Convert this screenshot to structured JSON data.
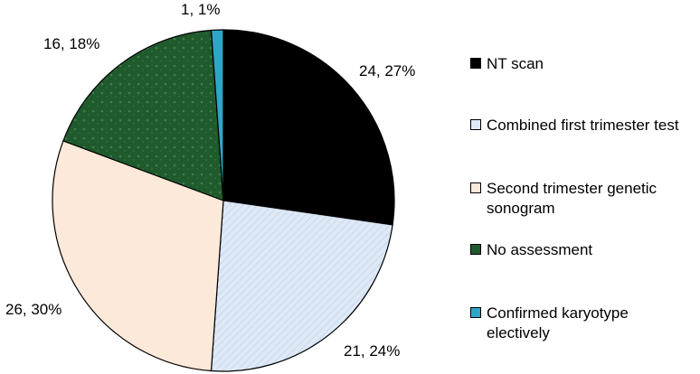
{
  "chart_data": {
    "type": "pie",
    "title": "",
    "slices": [
      {
        "label": "NT scan",
        "value": 24,
        "percent": 27,
        "data_label": "24, 27%",
        "color": "#000000"
      },
      {
        "label": "Combined first trimester test",
        "value": 21,
        "percent": 24,
        "data_label": "21, 24%",
        "color": "#dfe9f6"
      },
      {
        "label": "Second trimester genetic sonogram",
        "value": 26,
        "percent": 30,
        "data_label": "26, 30%",
        "color": "#fde9d9"
      },
      {
        "label": "No assessment",
        "value": 16,
        "percent": 18,
        "data_label": "16, 18%",
        "color": "#1f5a2c"
      },
      {
        "label": "Confirmed karyotype electively",
        "value": 1,
        "percent": 1,
        "data_label": "1, 1%",
        "color": "#2ea6c6"
      }
    ],
    "legend_position": "right",
    "start_angle": "top, clockwise"
  }
}
